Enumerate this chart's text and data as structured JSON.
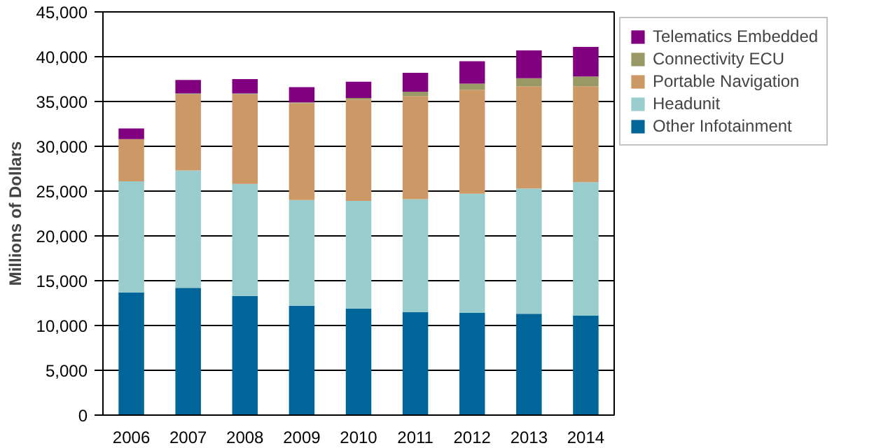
{
  "chart_data": {
    "type": "bar",
    "stacked": true,
    "ylabel": "Millions of Dollars",
    "categories": [
      "2006",
      "2007",
      "2008",
      "2009",
      "2010",
      "2011",
      "2012",
      "2013",
      "2014"
    ],
    "series": [
      {
        "name": "Other Infotainment",
        "color": "#006699",
        "values": [
          13700,
          14200,
          13300,
          12200,
          11900,
          11500,
          11400,
          11300,
          11100
        ]
      },
      {
        "name": "Headunit",
        "color": "#99cccc",
        "values": [
          12400,
          13100,
          12500,
          11800,
          12000,
          12600,
          13300,
          14000,
          14900
        ]
      },
      {
        "name": "Portable Navigation",
        "color": "#cc9966",
        "values": [
          4700,
          8500,
          10000,
          10800,
          11300,
          11500,
          11600,
          11400,
          10700
        ]
      },
      {
        "name": "Connectivity ECU",
        "color": "#999966",
        "values": [
          0,
          100,
          100,
          100,
          200,
          500,
          700,
          900,
          1100
        ]
      },
      {
        "name": "Telematics Embedded",
        "color": "#800080",
        "values": [
          1200,
          1500,
          1600,
          1700,
          1800,
          2100,
          2500,
          3100,
          3300
        ]
      }
    ],
    "ylim": [
      0,
      45000
    ],
    "yticks": [
      {
        "value": 0,
        "label": "0"
      },
      {
        "value": 5000,
        "label": "5,000"
      },
      {
        "value": 10000,
        "label": "10,000"
      },
      {
        "value": 15000,
        "label": "15,000"
      },
      {
        "value": 20000,
        "label": "20,000"
      },
      {
        "value": 25000,
        "label": "25,000"
      },
      {
        "value": 30000,
        "label": "30,000"
      },
      {
        "value": 35000,
        "label": "35,000"
      },
      {
        "value": 40000,
        "label": "40,000"
      },
      {
        "value": 45000,
        "label": "45,000"
      }
    ],
    "grid": "y",
    "legend": "right"
  }
}
